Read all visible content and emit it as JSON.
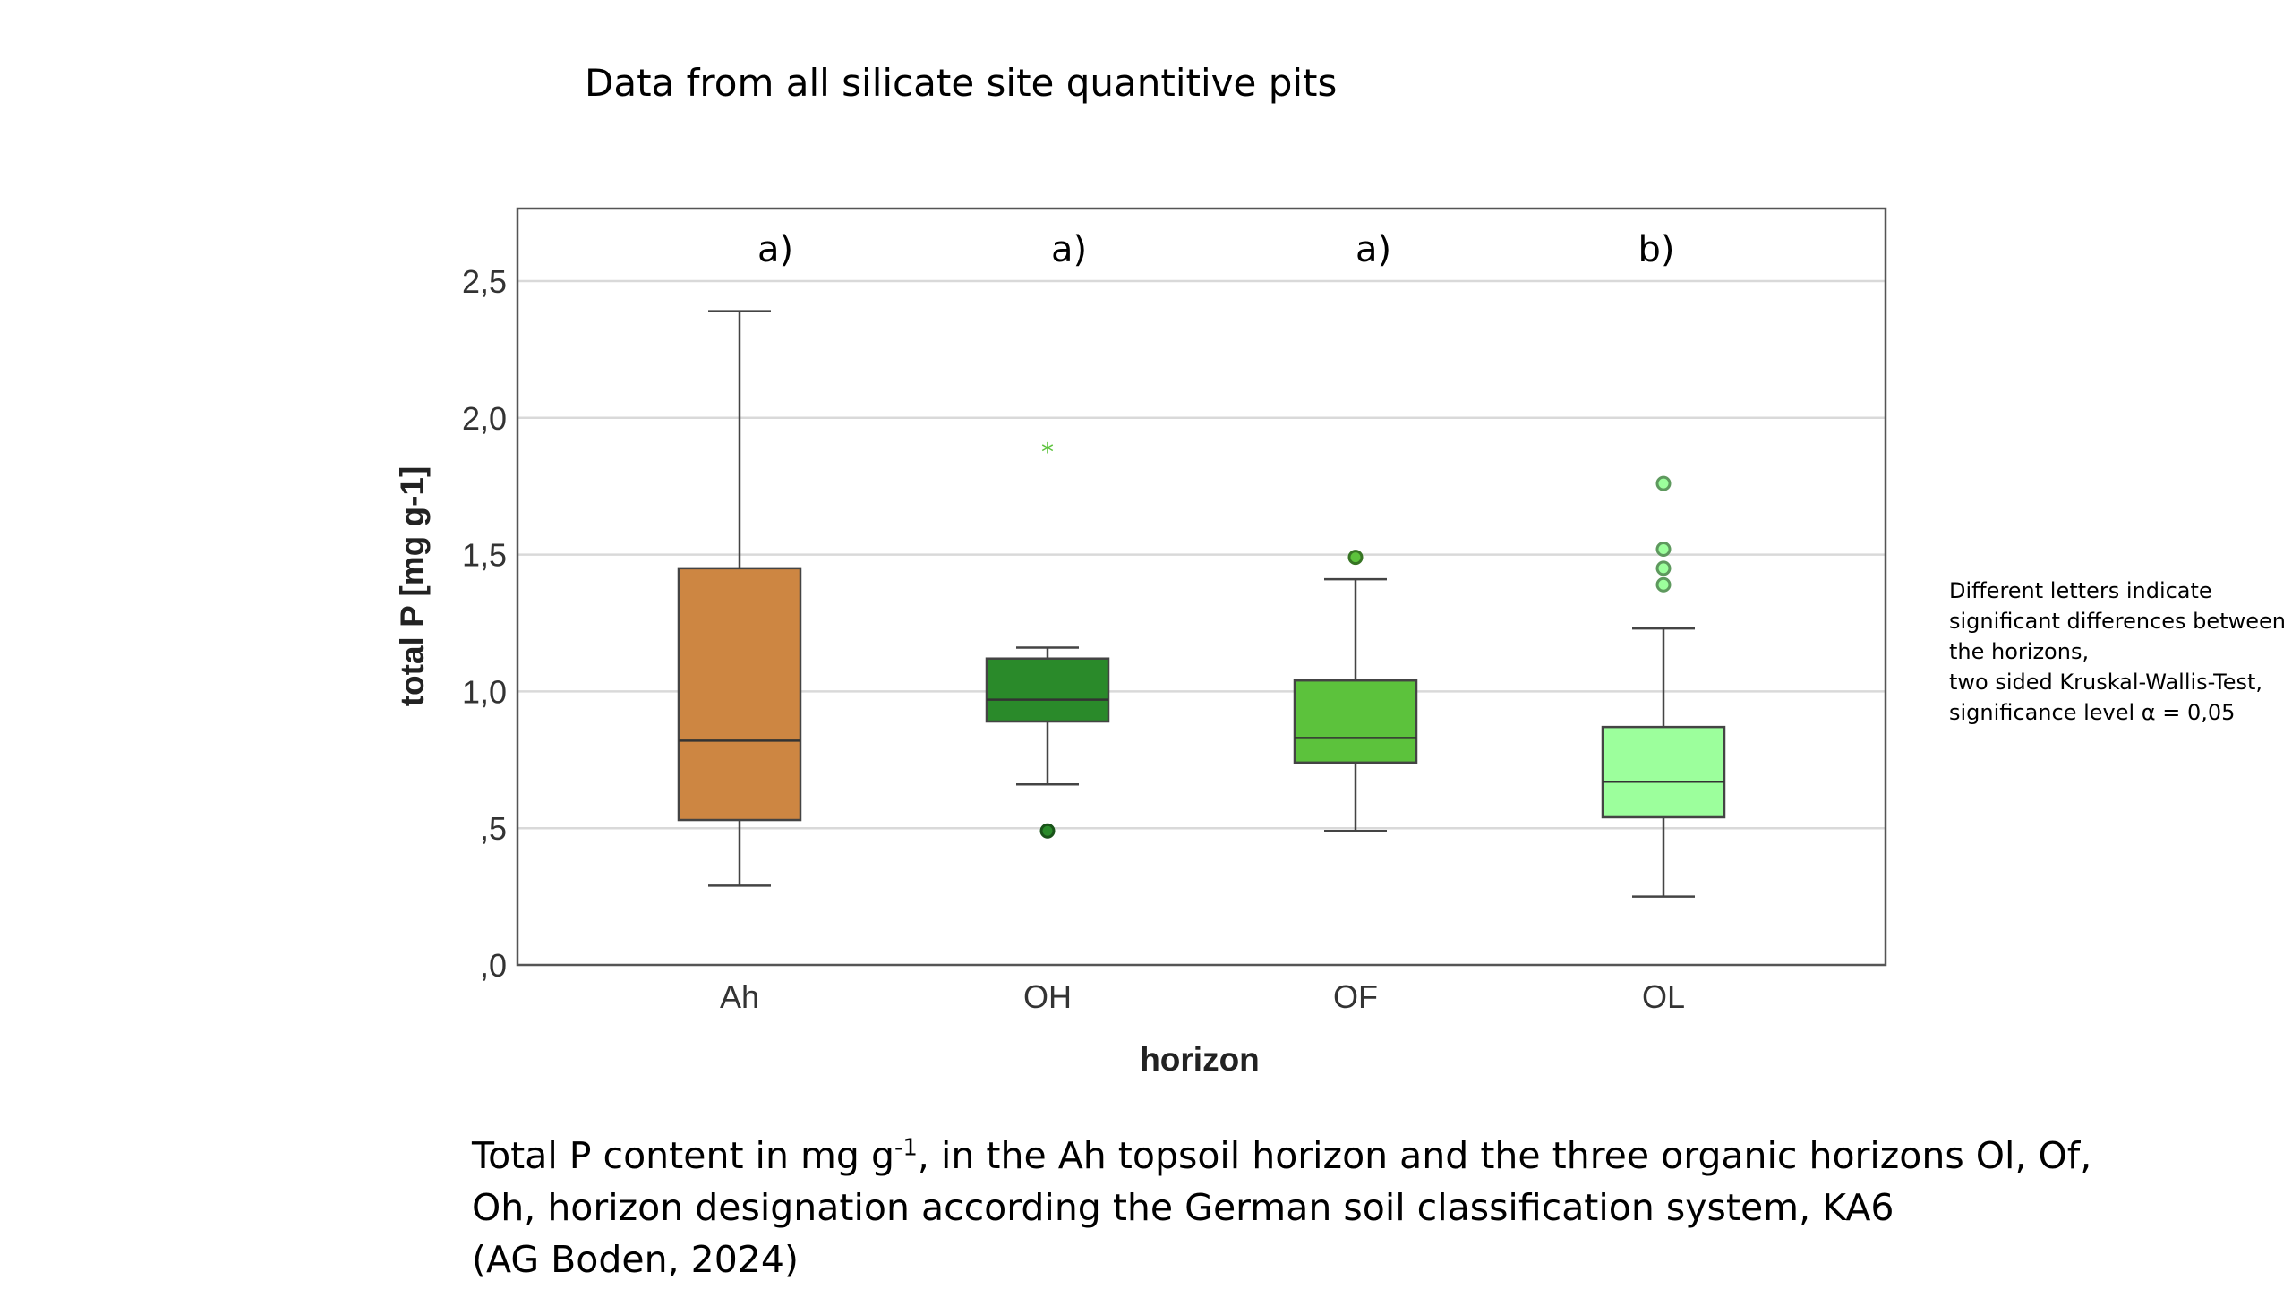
{
  "slide": {
    "title": "Data from all silicate site quantitive pits"
  },
  "chart_data": {
    "type": "boxplot",
    "xlabel": "horizon",
    "ylabel": "total P [mg g-1]",
    "ylim": [
      0,
      2.75
    ],
    "yticks": [
      0,
      0.5,
      1.0,
      1.5,
      2.0,
      2.5
    ],
    "ytick_labels": [
      ",0",
      ",5",
      "1,0",
      "1,5",
      "2,0",
      "2,5"
    ],
    "grid": true,
    "categories": [
      "Ah",
      "OH",
      "OF",
      "OL"
    ],
    "group_letters": [
      "a)",
      "a)",
      "a)",
      "b)"
    ],
    "colors": [
      "#cd8642",
      "#2a8a2a",
      "#5cc23c",
      "#9cff9c"
    ],
    "boxes": [
      {
        "category": "Ah",
        "whisker_low": 0.29,
        "q1": 0.53,
        "median": 0.82,
        "q3": 1.45,
        "whisker_high": 2.39,
        "outliers": [],
        "extremes": []
      },
      {
        "category": "OH",
        "whisker_low": 0.66,
        "q1": 0.89,
        "median": 0.97,
        "q3": 1.12,
        "whisker_high": 1.16,
        "outliers": [
          0.49
        ],
        "extremes": [
          1.89
        ]
      },
      {
        "category": "OF",
        "whisker_low": 0.49,
        "q1": 0.74,
        "median": 0.83,
        "q3": 1.04,
        "whisker_high": 1.41,
        "outliers": [
          1.49
        ],
        "extremes": []
      },
      {
        "category": "OL",
        "whisker_low": 0.25,
        "q1": 0.54,
        "median": 0.67,
        "q3": 0.87,
        "whisker_high": 1.23,
        "outliers": [
          1.39,
          1.45,
          1.52,
          1.76
        ],
        "extremes": []
      }
    ]
  },
  "note": {
    "lines": [
      "Different letters indicate",
      "significant differences between",
      "the horizons,",
      "two sided Kruskal-Wallis-Test,",
      "significance level α = 0,05"
    ]
  },
  "caption": {
    "line1_pre": "Total P content in mg g",
    "line1_sup": "-1",
    "line1_post": ", in the Ah topsoil horizon and the three organic horizons Ol, Of,",
    "line2": "Oh, horizon designation according the German soil classification system, KA6",
    "line3": "(AG Boden, 2024)"
  }
}
